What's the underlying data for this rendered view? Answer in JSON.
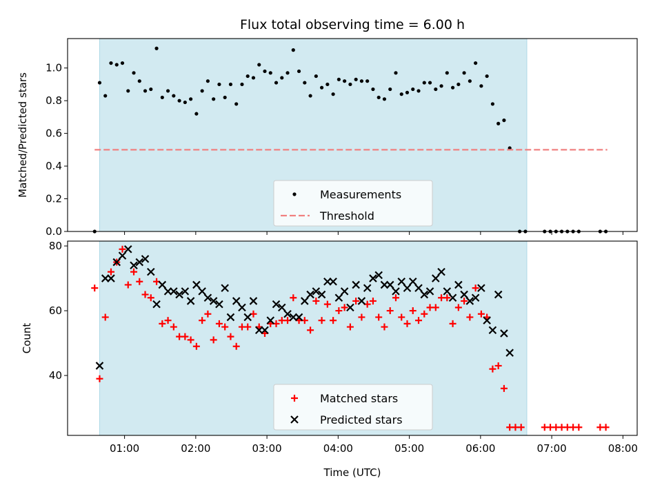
{
  "chart_data": [
    {
      "type": "scatter",
      "title": "Flux total observing time = 6.00 h",
      "xlabel": "",
      "ylabel": "Matched/Predicted stars",
      "ylim": [
        0,
        1.18
      ],
      "yticks": [
        "0.0",
        "0.2",
        "0.4",
        "0.6",
        "0.8",
        "1.0"
      ],
      "xlim_hours": [
        0.2,
        8.2
      ],
      "observing_window_hours": [
        0.65,
        6.65
      ],
      "legend_position": "lower-center",
      "series": [
        {
          "name": "Measurements",
          "marker": "dot",
          "color": "#000000",
          "points": [
            [
              0.58,
              0.0
            ],
            [
              0.65,
              0.91
            ],
            [
              0.73,
              0.83
            ],
            [
              0.81,
              1.03
            ],
            [
              0.89,
              1.02
            ],
            [
              0.97,
              1.03
            ],
            [
              1.05,
              0.86
            ],
            [
              1.13,
              0.97
            ],
            [
              1.21,
              0.92
            ],
            [
              1.29,
              0.86
            ],
            [
              1.37,
              0.87
            ],
            [
              1.45,
              1.12
            ],
            [
              1.53,
              0.82
            ],
            [
              1.61,
              0.86
            ],
            [
              1.69,
              0.83
            ],
            [
              1.77,
              0.8
            ],
            [
              1.85,
              0.79
            ],
            [
              1.93,
              0.81
            ],
            [
              2.01,
              0.72
            ],
            [
              2.09,
              0.86
            ],
            [
              2.17,
              0.92
            ],
            [
              2.25,
              0.81
            ],
            [
              2.33,
              0.9
            ],
            [
              2.41,
              0.82
            ],
            [
              2.49,
              0.9
            ],
            [
              2.57,
              0.78
            ],
            [
              2.65,
              0.9
            ],
            [
              2.73,
              0.95
            ],
            [
              2.81,
              0.94
            ],
            [
              2.89,
              1.02
            ],
            [
              2.97,
              0.98
            ],
            [
              3.05,
              0.97
            ],
            [
              3.13,
              0.91
            ],
            [
              3.21,
              0.94
            ],
            [
              3.29,
              0.97
            ],
            [
              3.37,
              1.11
            ],
            [
              3.45,
              0.98
            ],
            [
              3.53,
              0.91
            ],
            [
              3.61,
              0.83
            ],
            [
              3.69,
              0.95
            ],
            [
              3.77,
              0.88
            ],
            [
              3.85,
              0.9
            ],
            [
              3.93,
              0.84
            ],
            [
              4.01,
              0.93
            ],
            [
              4.09,
              0.92
            ],
            [
              4.17,
              0.9
            ],
            [
              4.25,
              0.93
            ],
            [
              4.33,
              0.92
            ],
            [
              4.41,
              0.92
            ],
            [
              4.49,
              0.87
            ],
            [
              4.57,
              0.82
            ],
            [
              4.65,
              0.81
            ],
            [
              4.73,
              0.87
            ],
            [
              4.81,
              0.97
            ],
            [
              4.89,
              0.84
            ],
            [
              4.97,
              0.85
            ],
            [
              5.05,
              0.87
            ],
            [
              5.13,
              0.86
            ],
            [
              5.21,
              0.91
            ],
            [
              5.29,
              0.91
            ],
            [
              5.37,
              0.87
            ],
            [
              5.45,
              0.89
            ],
            [
              5.53,
              0.97
            ],
            [
              5.61,
              0.88
            ],
            [
              5.69,
              0.9
            ],
            [
              5.77,
              0.97
            ],
            [
              5.85,
              0.92
            ],
            [
              5.93,
              1.03
            ],
            [
              6.01,
              0.89
            ],
            [
              6.09,
              0.95
            ],
            [
              6.17,
              0.78
            ],
            [
              6.25,
              0.66
            ],
            [
              6.33,
              0.68
            ],
            [
              6.41,
              0.51
            ],
            [
              6.55,
              0.0
            ],
            [
              6.63,
              0.0
            ],
            [
              6.9,
              0.0
            ],
            [
              6.98,
              0.0
            ],
            [
              7.06,
              0.0
            ],
            [
              7.14,
              0.0
            ],
            [
              7.22,
              0.0
            ],
            [
              7.3,
              0.0
            ],
            [
              7.38,
              0.0
            ],
            [
              7.68,
              0.0
            ],
            [
              7.76,
              0.0
            ]
          ]
        },
        {
          "name": "Threshold",
          "marker": "dashed-line",
          "color": "#f08080",
          "points": [
            [
              0.58,
              0.5
            ],
            [
              7.78,
              0.5
            ]
          ]
        }
      ]
    },
    {
      "type": "scatter",
      "xlabel": "Time (UTC)",
      "ylabel": "Count",
      "ylim": [
        21.5,
        81.5
      ],
      "yticks": [
        "40",
        "60",
        "80"
      ],
      "xlim_hours": [
        0.2,
        8.2
      ],
      "x_tick_labels": [
        "01:00",
        "02:00",
        "03:00",
        "04:00",
        "05:00",
        "06:00",
        "07:00",
        "08:00"
      ],
      "observing_window_hours": [
        0.65,
        6.65
      ],
      "legend_position": "lower-center",
      "series": [
        {
          "name": "Matched stars",
          "marker": "plus",
          "color": "#ff0000",
          "points": [
            [
              0.58,
              67
            ],
            [
              0.65,
              39
            ],
            [
              0.73,
              58
            ],
            [
              0.81,
              72
            ],
            [
              0.89,
              75
            ],
            [
              0.97,
              79
            ],
            [
              1.05,
              68
            ],
            [
              1.13,
              72
            ],
            [
              1.21,
              69
            ],
            [
              1.29,
              65
            ],
            [
              1.37,
              64
            ],
            [
              1.45,
              69
            ],
            [
              1.53,
              56
            ],
            [
              1.61,
              57
            ],
            [
              1.69,
              55
            ],
            [
              1.77,
              52
            ],
            [
              1.85,
              52
            ],
            [
              1.93,
              51
            ],
            [
              2.01,
              49
            ],
            [
              2.09,
              57
            ],
            [
              2.17,
              59
            ],
            [
              2.25,
              51
            ],
            [
              2.33,
              56
            ],
            [
              2.41,
              55
            ],
            [
              2.49,
              52
            ],
            [
              2.57,
              49
            ],
            [
              2.65,
              55
            ],
            [
              2.73,
              55
            ],
            [
              2.81,
              59
            ],
            [
              2.89,
              55
            ],
            [
              2.97,
              53
            ],
            [
              3.05,
              56
            ],
            [
              3.13,
              56
            ],
            [
              3.21,
              57
            ],
            [
              3.29,
              57
            ],
            [
              3.37,
              64
            ],
            [
              3.45,
              57
            ],
            [
              3.53,
              57
            ],
            [
              3.61,
              54
            ],
            [
              3.69,
              63
            ],
            [
              3.77,
              57
            ],
            [
              3.85,
              62
            ],
            [
              3.93,
              57
            ],
            [
              4.01,
              60
            ],
            [
              4.09,
              61
            ],
            [
              4.17,
              55
            ],
            [
              4.25,
              63
            ],
            [
              4.33,
              58
            ],
            [
              4.41,
              62
            ],
            [
              4.49,
              63
            ],
            [
              4.57,
              58
            ],
            [
              4.65,
              55
            ],
            [
              4.73,
              60
            ],
            [
              4.81,
              64
            ],
            [
              4.89,
              58
            ],
            [
              4.97,
              56
            ],
            [
              5.05,
              60
            ],
            [
              5.13,
              57
            ],
            [
              5.21,
              59
            ],
            [
              5.29,
              61
            ],
            [
              5.37,
              61
            ],
            [
              5.45,
              64
            ],
            [
              5.53,
              64
            ],
            [
              5.61,
              56
            ],
            [
              5.69,
              61
            ],
            [
              5.77,
              63
            ],
            [
              5.85,
              58
            ],
            [
              5.93,
              67
            ],
            [
              6.01,
              59
            ],
            [
              6.09,
              58
            ],
            [
              6.17,
              42
            ],
            [
              6.25,
              43
            ],
            [
              6.33,
              36
            ],
            [
              6.41,
              24
            ],
            [
              6.49,
              24
            ],
            [
              6.57,
              24
            ],
            [
              6.9,
              24
            ],
            [
              6.98,
              24
            ],
            [
              7.06,
              24
            ],
            [
              7.14,
              24
            ],
            [
              7.22,
              24
            ],
            [
              7.3,
              24
            ],
            [
              7.38,
              24
            ],
            [
              7.68,
              24
            ],
            [
              7.76,
              24
            ]
          ]
        },
        {
          "name": "Predicted stars",
          "marker": "x",
          "color": "#000000",
          "points": [
            [
              0.65,
              43
            ],
            [
              0.73,
              70
            ],
            [
              0.81,
              70
            ],
            [
              0.89,
              75
            ],
            [
              0.97,
              77
            ],
            [
              1.05,
              79
            ],
            [
              1.13,
              74
            ],
            [
              1.21,
              75
            ],
            [
              1.29,
              76
            ],
            [
              1.37,
              72
            ],
            [
              1.45,
              62
            ],
            [
              1.53,
              68
            ],
            [
              1.61,
              66
            ],
            [
              1.69,
              66
            ],
            [
              1.77,
              65
            ],
            [
              1.85,
              66
            ],
            [
              1.93,
              63
            ],
            [
              2.01,
              68
            ],
            [
              2.09,
              66
            ],
            [
              2.17,
              64
            ],
            [
              2.25,
              63
            ],
            [
              2.33,
              62
            ],
            [
              2.41,
              67
            ],
            [
              2.49,
              58
            ],
            [
              2.57,
              63
            ],
            [
              2.65,
              61
            ],
            [
              2.73,
              58
            ],
            [
              2.81,
              63
            ],
            [
              2.89,
              54
            ],
            [
              2.97,
              54
            ],
            [
              3.05,
              57
            ],
            [
              3.13,
              62
            ],
            [
              3.21,
              61
            ],
            [
              3.29,
              59
            ],
            [
              3.37,
              58
            ],
            [
              3.45,
              58
            ],
            [
              3.53,
              63
            ],
            [
              3.61,
              65
            ],
            [
              3.69,
              66
            ],
            [
              3.77,
              65
            ],
            [
              3.85,
              69
            ],
            [
              3.93,
              69
            ],
            [
              4.01,
              64
            ],
            [
              4.09,
              66
            ],
            [
              4.17,
              61
            ],
            [
              4.25,
              68
            ],
            [
              4.33,
              63
            ],
            [
              4.41,
              67
            ],
            [
              4.49,
              70
            ],
            [
              4.57,
              71
            ],
            [
              4.65,
              68
            ],
            [
              4.73,
              68
            ],
            [
              4.81,
              66
            ],
            [
              4.89,
              69
            ],
            [
              4.97,
              67
            ],
            [
              5.05,
              69
            ],
            [
              5.13,
              67
            ],
            [
              5.21,
              65
            ],
            [
              5.29,
              66
            ],
            [
              5.37,
              70
            ],
            [
              5.45,
              72
            ],
            [
              5.53,
              66
            ],
            [
              5.61,
              64
            ],
            [
              5.69,
              68
            ],
            [
              5.77,
              65
            ],
            [
              5.85,
              63
            ],
            [
              5.93,
              64
            ],
            [
              6.01,
              67
            ],
            [
              6.09,
              57
            ],
            [
              6.17,
              54
            ],
            [
              6.25,
              65
            ],
            [
              6.33,
              53
            ],
            [
              6.41,
              47
            ]
          ]
        }
      ]
    }
  ]
}
